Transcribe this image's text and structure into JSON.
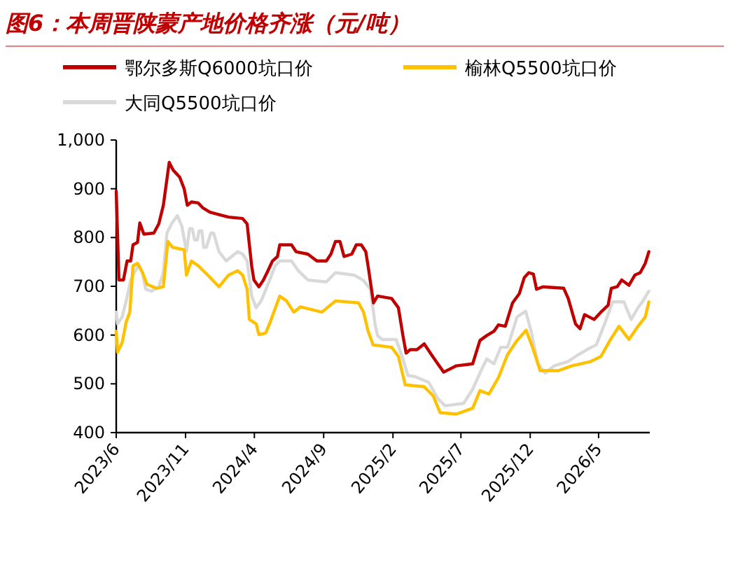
{
  "chart_data": {
    "type": "line",
    "title": "图6：本周晋陕蒙产地价格齐涨（元/吨）",
    "legend": "top",
    "grid": false,
    "marker": "none",
    "line_style": "solid",
    "xlim": [
      "2023-06-01",
      "2026-08-22"
    ],
    "xticks": [
      {
        "value": "2023-06-01",
        "label": "2023/6"
      },
      {
        "value": "2023-11-01",
        "label": "2023/11"
      },
      {
        "value": "2024-04-01",
        "label": "2024/4"
      },
      {
        "value": "2024-09-01",
        "label": "2024/9"
      },
      {
        "value": "2025-02-01",
        "label": "2025/2"
      },
      {
        "value": "2025-07-01",
        "label": "2025/7"
      },
      {
        "value": "2025-12-01",
        "label": "2025/12"
      },
      {
        "value": "2026-05-01",
        "label": "2026/5"
      }
    ],
    "ylim": [
      400,
      1000
    ],
    "yticks": [
      400,
      500,
      600,
      700,
      800,
      900,
      {
        "value": 1000,
        "label": "1,000"
      }
    ],
    "series": [
      {
        "name": "鄂尔多斯Q6000坑口价",
        "color": "#c00000",
        "x": [
          "2023-06-01",
          "2023-06-07",
          "2023-06-17",
          "2023-06-25",
          "2023-07-03",
          "2023-07-08",
          "2023-07-18",
          "2023-07-23",
          "2023-08-01",
          "2023-08-23",
          "2023-09-03",
          "2023-09-13",
          "2023-09-26",
          "2023-10-05",
          "2023-10-19",
          "2023-10-29",
          "2023-11-05",
          "2023-11-14",
          "2023-11-29",
          "2023-12-09",
          "2023-12-25",
          "2024-01-14",
          "2024-02-04",
          "2024-03-06",
          "2024-03-16",
          "2024-03-26",
          "2024-03-31",
          "2024-04-11",
          "2024-04-21",
          "2024-05-01",
          "2024-05-11",
          "2024-05-22",
          "2024-05-27",
          "2024-06-22",
          "2024-07-02",
          "2024-07-28",
          "2024-08-17",
          "2024-09-07",
          "2024-09-17",
          "2024-09-27",
          "2024-10-07",
          "2024-10-16",
          "2024-11-02",
          "2024-11-12",
          "2024-11-23",
          "2024-12-03",
          "2024-12-08",
          "2024-12-20",
          "2024-12-29",
          "2025-01-29",
          "2025-02-13",
          "2025-02-23",
          "2025-03-02",
          "2025-03-11",
          "2025-03-26",
          "2025-04-11",
          "2025-04-26",
          "2025-05-11",
          "2025-05-24",
          "2025-06-21",
          "2025-07-27",
          "2025-08-12",
          "2025-08-27",
          "2025-09-12",
          "2025-09-22",
          "2025-10-07",
          "2025-10-23",
          "2025-11-07",
          "2025-11-18",
          "2025-11-28",
          "2025-12-08",
          "2025-12-15",
          "2025-12-29",
          "2026-02-13",
          "2026-02-23",
          "2026-03-11",
          "2026-03-21",
          "2026-03-31",
          "2026-04-21",
          "2026-05-06",
          "2026-05-22",
          "2026-05-29",
          "2026-06-11",
          "2026-06-21",
          "2026-07-07",
          "2026-07-20",
          "2026-08-01",
          "2026-08-12",
          "2026-08-20"
        ],
        "values": [
          895,
          713,
          713,
          752,
          752,
          785,
          790,
          830,
          807,
          809,
          828,
          866,
          954,
          938,
          924,
          900,
          866,
          873,
          871,
          861,
          852,
          847,
          842,
          839,
          828,
          742,
          713,
          699,
          713,
          732,
          752,
          761,
          785,
          785,
          771,
          766,
          752,
          752,
          766,
          792,
          792,
          761,
          766,
          785,
          785,
          771,
          742,
          666,
          680,
          675,
          656,
          599,
          563,
          570,
          570,
          582,
          561,
          541,
          524,
          537,
          541,
          589,
          599,
          608,
          621,
          618,
          666,
          685,
          718,
          728,
          725,
          694,
          699,
          696,
          675,
          623,
          613,
          642,
          632,
          647,
          661,
          696,
          699,
          713,
          702,
          723,
          728,
          747,
          771
        ]
      },
      {
        "name": "榆林Q5500坑口价",
        "color": "#ffc000",
        "x": [
          "2023-06-01",
          "2023-06-04",
          "2023-06-14",
          "2023-06-23",
          "2023-07-01",
          "2023-07-08",
          "2023-07-18",
          "2023-07-29",
          "2023-08-08",
          "2023-08-29",
          "2023-09-13",
          "2023-09-23",
          "2023-10-03",
          "2023-10-29",
          "2023-11-03",
          "2023-11-14",
          "2023-11-29",
          "2023-12-20",
          "2024-01-14",
          "2024-02-04",
          "2024-02-24",
          "2024-03-06",
          "2024-03-16",
          "2024-03-21",
          "2024-04-05",
          "2024-04-11",
          "2024-04-26",
          "2024-05-06",
          "2024-05-27",
          "2024-06-11",
          "2024-06-27",
          "2024-07-12",
          "2024-08-28",
          "2024-09-27",
          "2024-11-17",
          "2024-11-28",
          "2024-12-08",
          "2024-12-19",
          "2025-01-29",
          "2025-02-13",
          "2025-02-28",
          "2025-04-11",
          "2025-05-01",
          "2025-05-16",
          "2025-06-21",
          "2025-07-27",
          "2025-08-12",
          "2025-09-01",
          "2025-09-22",
          "2025-10-12",
          "2025-11-02",
          "2025-11-22",
          "2025-12-08",
          "2025-12-23",
          "2026-02-01",
          "2026-03-03",
          "2026-04-14",
          "2026-05-06",
          "2026-05-26",
          "2026-06-15",
          "2026-07-07",
          "2026-07-27",
          "2026-08-12",
          "2026-08-20"
        ],
        "values": [
          608,
          565,
          584,
          627,
          647,
          742,
          747,
          728,
          704,
          696,
          699,
          792,
          780,
          775,
          723,
          752,
          742,
          723,
          699,
          723,
          732,
          723,
          694,
          632,
          623,
          601,
          604,
          627,
          680,
          670,
          647,
          658,
          647,
          670,
          666,
          647,
          608,
          580,
          575,
          556,
          498,
          494,
          475,
          441,
          438,
          450,
          486,
          479,
          513,
          560,
          589,
          610,
          570,
          527,
          527,
          537,
          546,
          556,
          589,
          618,
          591,
          618,
          637,
          668
        ]
      },
      {
        "name": "大同Q5500坑口价",
        "color": "#d9d9d9",
        "x": [
          "2023-06-01",
          "2023-06-04",
          "2023-06-14",
          "2023-06-23",
          "2023-07-03",
          "2023-07-11",
          "2023-07-21",
          "2023-07-29",
          "2023-08-05",
          "2023-08-18",
          "2023-09-03",
          "2023-09-13",
          "2023-09-21",
          "2023-10-01",
          "2023-10-14",
          "2023-10-24",
          "2023-11-03",
          "2023-11-10",
          "2023-11-14",
          "2023-11-16",
          "2023-11-21",
          "2023-11-24",
          "2023-11-27",
          "2023-12-01",
          "2023-12-04",
          "2023-12-07",
          "2023-12-11",
          "2023-12-14",
          "2023-12-17",
          "2023-12-27",
          "2023-12-30",
          "2024-01-02",
          "2024-01-14",
          "2024-01-30",
          "2024-02-24",
          "2024-03-06",
          "2024-03-16",
          "2024-03-26",
          "2024-04-05",
          "2024-04-16",
          "2024-05-01",
          "2024-05-17",
          "2024-05-27",
          "2024-06-22",
          "2024-07-07",
          "2024-07-28",
          "2024-09-07",
          "2024-09-27",
          "2024-11-07",
          "2024-11-28",
          "2024-12-13",
          "2024-12-24",
          "2024-12-29",
          "2025-01-08",
          "2025-02-08",
          "2025-02-23",
          "2025-03-06",
          "2025-03-21",
          "2025-04-21",
          "2025-05-11",
          "2025-05-27",
          "2025-07-07",
          "2025-07-27",
          "2025-08-12",
          "2025-08-27",
          "2025-09-12",
          "2025-09-27",
          "2025-10-12",
          "2025-11-02",
          "2025-11-21",
          "2025-12-03",
          "2025-12-18",
          "2026-01-03",
          "2026-01-23",
          "2026-02-23",
          "2026-03-16",
          "2026-04-05",
          "2026-04-26",
          "2026-05-16",
          "2026-06-01",
          "2026-06-26",
          "2026-07-12",
          "2026-07-27",
          "2026-08-07",
          "2026-08-20"
        ],
        "values": [
          647,
          623,
          637,
          670,
          713,
          728,
          744,
          728,
          694,
          690,
          699,
          728,
          809,
          828,
          845,
          823,
          771,
          818,
          818,
          818,
          795,
          795,
          795,
          814,
          814,
          814,
          780,
          780,
          780,
          809,
          809,
          809,
          771,
          752,
          771,
          766,
          752,
          680,
          656,
          670,
          704,
          742,
          752,
          752,
          732,
          713,
          709,
          728,
          723,
          712,
          694,
          620,
          599,
          591,
          591,
          551,
          517,
          515,
          503,
          470,
          455,
          460,
          489,
          522,
          551,
          541,
          575,
          575,
          637,
          649,
          608,
          541,
          522,
          537,
          546,
          559,
          570,
          580,
          627,
          668,
          668,
          632,
          656,
          670,
          690
        ]
      }
    ]
  }
}
